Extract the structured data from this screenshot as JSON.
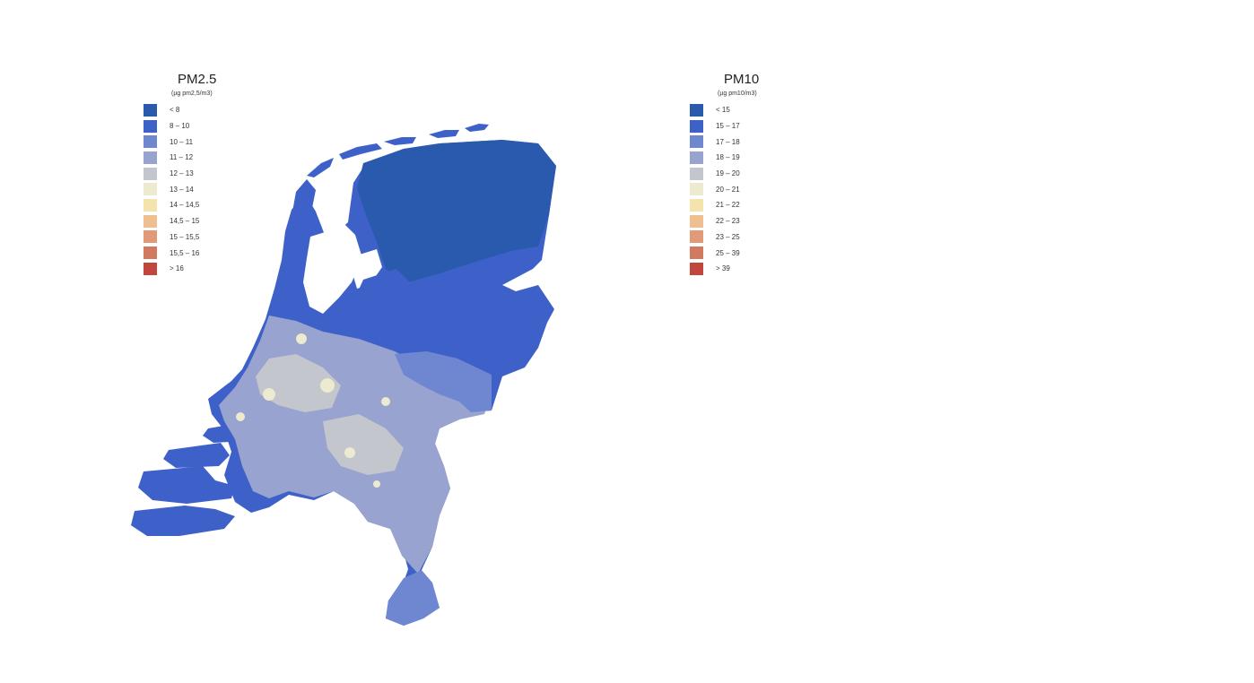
{
  "maps": [
    {
      "id": "pm25",
      "title": "PM2.5",
      "unit": "(µg pm2,5/m3)",
      "legend": [
        {
          "label": "< 8",
          "color": "#2a5aad"
        },
        {
          "label": "8 – 10",
          "color": "#3e61c9"
        },
        {
          "label": "10 – 11",
          "color": "#6f86d1"
        },
        {
          "label": "11 – 12",
          "color": "#98a3cf"
        },
        {
          "label": "12 – 13",
          "color": "#c3c6cc"
        },
        {
          "label": "13 – 14",
          "color": "#eceacf"
        },
        {
          "label": "14 – 14,5",
          "color": "#f4e3ad"
        },
        {
          "label": "14,5 – 15",
          "color": "#efc08f"
        },
        {
          "label": "15 – 15,5",
          "color": "#e09a78"
        },
        {
          "label": "15,5 – 16",
          "color": "#d27a60"
        },
        {
          "label": "> 16",
          "color": "#c1473c"
        }
      ]
    },
    {
      "id": "pm10",
      "title": "PM10",
      "unit": "(µg pm10/m3)",
      "legend": [
        {
          "label": "< 15",
          "color": "#2a5aad"
        },
        {
          "label": "15 – 17",
          "color": "#3e61c9"
        },
        {
          "label": "17 – 18",
          "color": "#6f86d1"
        },
        {
          "label": "18 – 19",
          "color": "#98a3cf"
        },
        {
          "label": "19 – 20",
          "color": "#c3c6cc"
        },
        {
          "label": "20 – 21",
          "color": "#eceacf"
        },
        {
          "label": "21 – 22",
          "color": "#f4e3ad"
        },
        {
          "label": "22 – 23",
          "color": "#efc08f"
        },
        {
          "label": "23 – 25",
          "color": "#e09a78"
        },
        {
          "label": "25 – 39",
          "color": "#d27a60"
        },
        {
          "label": "> 39",
          "color": "#c1473c"
        }
      ]
    }
  ]
}
